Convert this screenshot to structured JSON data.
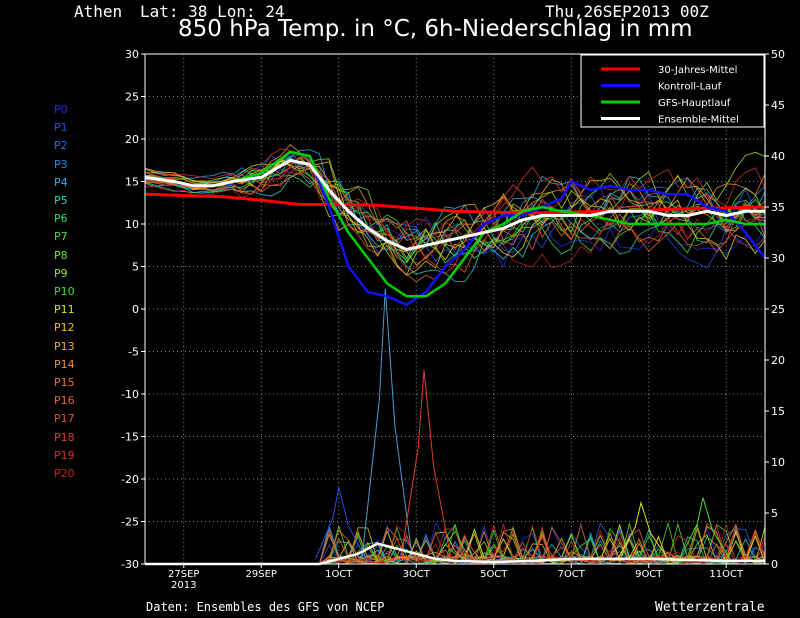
{
  "header": {
    "station": "Athen",
    "coords": "Lat: 38 Lon: 24",
    "run": "Thu,26SEP2013 00Z",
    "title": "850 hPa Temp. in °C, 6h-Niederschlag in mm"
  },
  "members": [
    {
      "label": "P0",
      "color": "#2a2ae6"
    },
    {
      "label": "P1",
      "color": "#2a4ae6"
    },
    {
      "label": "P2",
      "color": "#2a6ae6"
    },
    {
      "label": "P3",
      "color": "#2a8ae6"
    },
    {
      "label": "P4",
      "color": "#2ab0e6"
    },
    {
      "label": "P5",
      "color": "#2ad0c0"
    },
    {
      "label": "P6",
      "color": "#2ae070"
    },
    {
      "label": "P7",
      "color": "#40e040"
    },
    {
      "label": "P8",
      "color": "#70e030"
    },
    {
      "label": "P9",
      "color": "#a0e020"
    },
    {
      "label": "P10",
      "color": "#40e020"
    },
    {
      "label": "P11",
      "color": "#e0e020"
    },
    {
      "label": "P12",
      "color": "#e8c020"
    },
    {
      "label": "P13",
      "color": "#f0b020"
    },
    {
      "label": "P14",
      "color": "#f09030"
    },
    {
      "label": "P15",
      "color": "#f07030"
    },
    {
      "label": "P16",
      "color": "#e86030"
    },
    {
      "label": "P17",
      "color": "#e05030"
    },
    {
      "label": "P18",
      "color": "#d84030"
    },
    {
      "label": "P19",
      "color": "#d03030"
    },
    {
      "label": "P20",
      "color": "#c02020"
    }
  ],
  "legend": [
    {
      "label": "30-Jahres-Mittel",
      "color": "#ff0000"
    },
    {
      "label": "Kontroll-Lauf",
      "color": "#1010ff"
    },
    {
      "label": "GFS-Hauptlauf",
      "color": "#00d000"
    },
    {
      "label": "Ensemble-Mittel",
      "color": "#ffffff"
    }
  ],
  "footer": {
    "source": "Daten: Ensembles des GFS von NCEP",
    "brand": "Wetterzentrale"
  },
  "chart_data": {
    "type": "line",
    "x_ticks": [
      "27SEP\n2013",
      "29SEP",
      "1OCT",
      "3OCT",
      "5OCT",
      "7OCT",
      "9OCT",
      "11OCT"
    ],
    "x_unit": "forecast day from 26SEP2013 00Z",
    "x_range": [
      0,
      16
    ],
    "y_left": {
      "label": "850 hPa Temp (°C)",
      "range": [
        -30,
        30
      ],
      "ticks": [
        -30,
        -25,
        -20,
        -15,
        -10,
        -5,
        0,
        5,
        10,
        15,
        20,
        25,
        30
      ]
    },
    "y_right": {
      "label": "6h precipitation (mm)",
      "range": [
        0,
        50
      ],
      "ticks": [
        0,
        5,
        10,
        15,
        20,
        25,
        30,
        35,
        40,
        45,
        50
      ]
    },
    "grid": true,
    "legend_position": "top-right",
    "series": [
      {
        "name": "30-Jahres-Mittel",
        "axis": "left",
        "color": "#ff0000",
        "width": 3,
        "x": [
          0,
          2,
          3,
          4,
          5,
          6,
          8,
          10,
          12,
          14,
          16
        ],
        "y": [
          13.5,
          13.2,
          12.8,
          12.3,
          12.3,
          12.2,
          11.5,
          11.3,
          11.5,
          11.8,
          12.0
        ]
      },
      {
        "name": "Kontroll-Lauf",
        "axis": "left",
        "color": "#1010ff",
        "width": 2.5,
        "x": [
          0,
          0.75,
          1.25,
          1.75,
          2.25,
          3,
          3.75,
          4.25,
          4.75,
          5.25,
          5.75,
          6.25,
          6.75,
          7.25,
          7.75,
          8.25,
          8.75,
          9.25,
          9.75,
          10.25,
          10.75,
          11,
          11.5,
          12,
          12.5,
          13,
          13.5,
          14,
          14.5,
          15,
          15.5,
          16
        ],
        "y": [
          15.5,
          15,
          14.5,
          14.5,
          15,
          16,
          18.5,
          18,
          12,
          5,
          2,
          1.5,
          0.5,
          2,
          5,
          7,
          10,
          11,
          11,
          12,
          13,
          15,
          14,
          14.5,
          14,
          14,
          13.5,
          13.5,
          12,
          11.5,
          9,
          6
        ]
      },
      {
        "name": "GFS-Hauptlauf",
        "axis": "left",
        "color": "#00d000",
        "width": 2.5,
        "x": [
          0,
          0.75,
          1.25,
          1.75,
          2.25,
          3,
          3.75,
          4.25,
          4.75,
          5.25,
          5.75,
          6.25,
          6.75,
          7.25,
          7.75,
          8.25,
          8.75,
          9.25,
          9.75,
          10.25,
          10.75,
          11.5,
          12,
          12.5,
          13,
          13.5,
          14,
          14.5,
          15,
          15.5,
          16
        ],
        "y": [
          15.5,
          15,
          14.5,
          14.5,
          15,
          16,
          18.5,
          18,
          13,
          9,
          6,
          3,
          1.5,
          1.5,
          3,
          6,
          9,
          10,
          11.5,
          12,
          11.5,
          11,
          10.5,
          10,
          10,
          10,
          10,
          10,
          10.5,
          10,
          10
        ]
      },
      {
        "name": "Ensemble-Mittel",
        "axis": "left",
        "color": "#ffffff",
        "width": 3,
        "x": [
          0,
          0.75,
          1.25,
          1.75,
          2.25,
          3,
          3.75,
          4.25,
          4.75,
          5.25,
          5.75,
          6.25,
          6.75,
          7.25,
          7.75,
          8.25,
          8.75,
          9.25,
          9.75,
          10.25,
          10.75,
          11.5,
          12,
          12.5,
          13,
          13.5,
          14,
          14.5,
          15,
          15.5,
          16
        ],
        "y": [
          15.5,
          15,
          14.5,
          14.5,
          15,
          15.5,
          17.5,
          17,
          14,
          11.5,
          9.5,
          8,
          7,
          7.5,
          8,
          8.5,
          9,
          9.5,
          10.5,
          11,
          11,
          11,
          11.5,
          11.5,
          11.5,
          11,
          11,
          11.5,
          11,
          11.5,
          11.5
        ]
      },
      {
        "name": "Ensemble-Mittel Niederschlag",
        "axis": "right",
        "color": "#ffffff",
        "width": 2.5,
        "x": [
          0,
          4.5,
          5,
          5.5,
          6,
          6.5,
          7,
          7.5,
          8,
          9,
          10,
          11,
          12,
          13,
          14,
          15,
          16
        ],
        "y": [
          0,
          0,
          0.5,
          1,
          2,
          1.5,
          1,
          0.5,
          0.3,
          0.2,
          0.3,
          0.5,
          0.5,
          0.5,
          0.4,
          0.3,
          0.3
        ]
      }
    ],
    "member_temperature_spread": {
      "axis": "left",
      "day3_range": [
        16,
        21
      ],
      "day6_range": [
        0,
        10
      ],
      "day16_range": [
        4,
        17
      ]
    },
    "member_precipitation_peaks": [
      {
        "axis": "right",
        "x": 6.2,
        "y": 27,
        "color": "#4a9ad0"
      },
      {
        "axis": "right",
        "x": 7.2,
        "y": 19,
        "color": "#e04020"
      },
      {
        "axis": "right",
        "x": 5.0,
        "y": 7.5,
        "color": "#2a4ae6"
      },
      {
        "axis": "right",
        "x": 12.8,
        "y": 6,
        "color": "#e0e020"
      },
      {
        "axis": "right",
        "x": 14.4,
        "y": 6.5,
        "color": "#40e020"
      }
    ]
  }
}
